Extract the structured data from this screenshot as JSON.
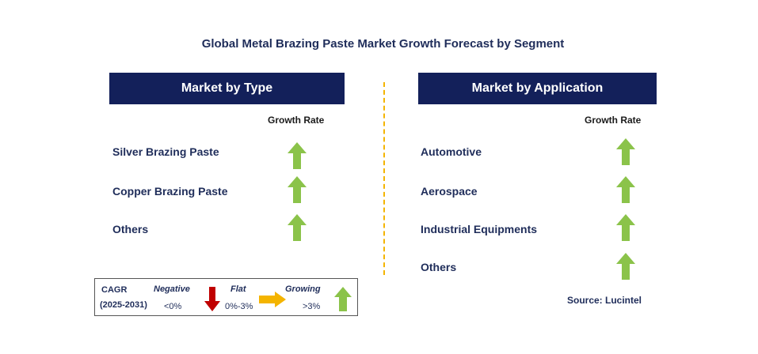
{
  "title": "Global Metal Brazing Paste Market Growth Forecast by Segment",
  "colors": {
    "header_bg": "#13205a",
    "growing": "#8bc34a",
    "negative": "#c00000",
    "flat": "#f4b400",
    "divider": "#f4b400"
  },
  "left_panel": {
    "header": "Market by Type",
    "growth_rate_label": "Growth Rate",
    "items": [
      {
        "label": "Silver Brazing Paste",
        "trend": "growing"
      },
      {
        "label": "Copper Brazing Paste",
        "trend": "growing"
      },
      {
        "label": "Others",
        "trend": "growing"
      }
    ]
  },
  "right_panel": {
    "header": "Market by Application",
    "growth_rate_label": "Growth Rate",
    "items": [
      {
        "label": "Automotive",
        "trend": "growing"
      },
      {
        "label": "Aerospace",
        "trend": "growing"
      },
      {
        "label": "Industrial Equipments",
        "trend": "growing"
      },
      {
        "label": "Others",
        "trend": "growing"
      }
    ]
  },
  "legend": {
    "cagr_label": "CAGR",
    "period": "(2025-2031)",
    "negative_label": "Negative",
    "negative_range": "<0%",
    "flat_label": "Flat",
    "flat_range": "0%-3%",
    "growing_label": "Growing",
    "growing_range": ">3%"
  },
  "source": "Source: Lucintel"
}
